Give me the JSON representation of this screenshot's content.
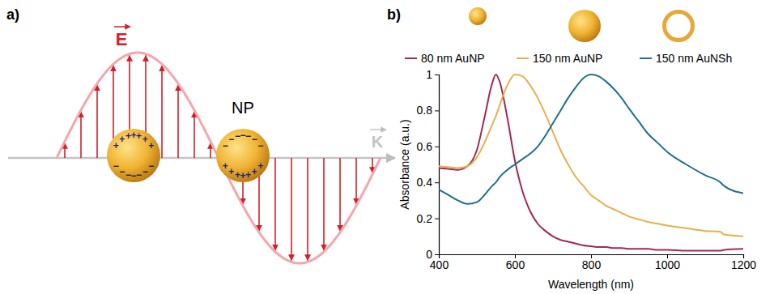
{
  "diagram": {
    "panel_label": "a)",
    "field_label": "E",
    "wave_vector_label": "K",
    "particle_label": "NP",
    "charges": {
      "positive": "+",
      "negative": "−"
    }
  },
  "chart_data": {
    "type": "line",
    "panel_label": "b)",
    "x_label": "Wavelength (nm)",
    "y_label": "Absorbance (a.u.)",
    "x": [
      400,
      425,
      450,
      475,
      500,
      520,
      540,
      550,
      560,
      580,
      600,
      620,
      640,
      660,
      680,
      700,
      720,
      740,
      760,
      780,
      800,
      820,
      840,
      860,
      880,
      900,
      925,
      950,
      975,
      1000,
      1050,
      1100,
      1140,
      1150,
      1200
    ],
    "series": [
      {
        "name": "80 nm AuNP",
        "color": "#a02a57",
        "values": [
          0.48,
          0.475,
          0.47,
          0.49,
          0.58,
          0.76,
          0.95,
          1.0,
          0.96,
          0.76,
          0.52,
          0.35,
          0.24,
          0.17,
          0.13,
          0.1,
          0.08,
          0.07,
          0.06,
          0.05,
          0.045,
          0.04,
          0.04,
          0.035,
          0.035,
          0.03,
          0.03,
          0.03,
          0.025,
          0.025,
          0.02,
          0.02,
          0.02,
          0.025,
          0.03
        ]
      },
      {
        "name": "150 nm AuNP",
        "color": "#e8b04a",
        "values": [
          0.49,
          0.485,
          0.48,
          0.49,
          0.54,
          0.62,
          0.72,
          0.77,
          0.83,
          0.94,
          1.0,
          0.99,
          0.94,
          0.87,
          0.78,
          0.68,
          0.58,
          0.5,
          0.43,
          0.38,
          0.33,
          0.3,
          0.27,
          0.25,
          0.23,
          0.21,
          0.195,
          0.18,
          0.17,
          0.16,
          0.145,
          0.13,
          0.125,
          0.11,
          0.1
        ]
      },
      {
        "name": "150 nm AuNSh",
        "color": "#1f6f8b",
        "values": [
          0.36,
          0.33,
          0.3,
          0.28,
          0.29,
          0.33,
          0.38,
          0.4,
          0.43,
          0.47,
          0.5,
          0.53,
          0.56,
          0.6,
          0.66,
          0.73,
          0.8,
          0.87,
          0.93,
          0.98,
          1.0,
          0.99,
          0.96,
          0.92,
          0.87,
          0.81,
          0.74,
          0.67,
          0.62,
          0.57,
          0.5,
          0.44,
          0.4,
          0.38,
          0.34
        ]
      }
    ],
    "xlim": [
      400,
      1200
    ],
    "xticks": [
      400,
      600,
      800,
      1000,
      1200
    ],
    "ylim": [
      0,
      1
    ],
    "yticks": [
      0,
      0.2,
      0.4,
      0.6,
      0.8,
      1
    ],
    "legend": "top",
    "grid": false
  }
}
